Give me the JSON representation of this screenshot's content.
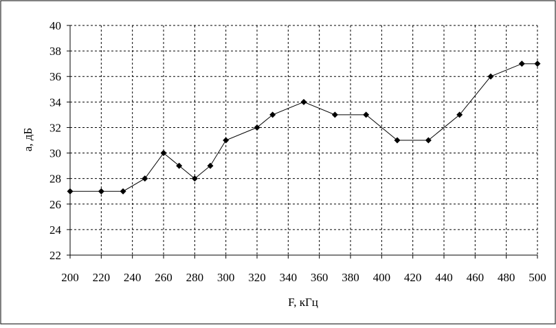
{
  "chart_data": {
    "type": "line",
    "title": "",
    "xlabel": "F, кГц",
    "ylabel": "a, дБ",
    "xlim": [
      200,
      500
    ],
    "ylim": [
      22,
      40
    ],
    "xticks": [
      200,
      220,
      240,
      260,
      280,
      300,
      320,
      340,
      360,
      380,
      400,
      420,
      440,
      460,
      480,
      500
    ],
    "yticks": [
      22,
      24,
      26,
      28,
      30,
      32,
      34,
      36,
      38,
      40
    ],
    "grid": true,
    "legend": "none",
    "series": [
      {
        "color": "#000000",
        "marker": "diamond",
        "x": [
          200,
          220,
          234,
          248,
          260,
          270,
          280,
          290,
          300,
          320,
          330,
          350,
          370,
          390,
          410,
          430,
          450,
          470,
          490,
          500
        ],
        "y": [
          27,
          27,
          27,
          28,
          30,
          29,
          28,
          29,
          31,
          32,
          33,
          34,
          33,
          33,
          31,
          31,
          33,
          36,
          37,
          37
        ]
      }
    ]
  }
}
